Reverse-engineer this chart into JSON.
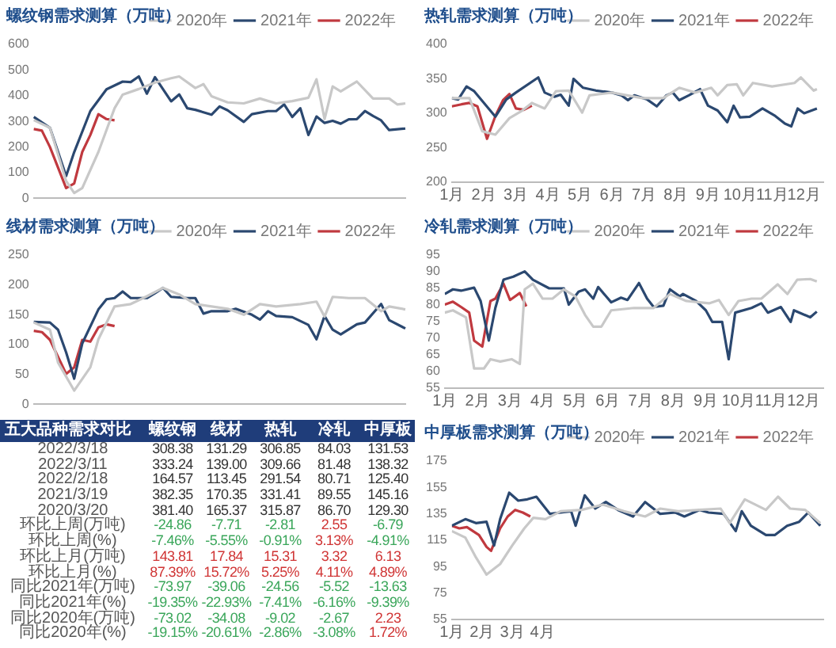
{
  "chart_data": [
    {
      "type": "line",
      "title": "螺纹钢需求测算（万吨）",
      "legend": "top right",
      "grid": false,
      "tick_labels": "y",
      "categories": [
        null,
        null,
        null,
        null,
        null,
        null,
        null,
        null,
        null,
        null,
        null,
        null,
        null,
        null,
        null,
        null,
        null,
        null,
        null,
        null,
        null,
        null,
        null,
        null,
        null,
        null,
        null,
        null,
        null,
        null,
        null,
        null,
        null,
        null,
        null,
        null,
        null,
        null,
        null,
        null,
        null,
        null,
        null,
        null,
        null,
        null,
        null
      ],
      "ylim": [
        0,
        600
      ],
      "yticks": [
        0,
        100,
        200,
        300,
        400,
        500,
        600
      ],
      "series": [
        {
          "name": "2020年",
          "color": "#c8c8c8",
          "values": [
            305,
            null,
            275,
            null,
            68,
            21,
            40,
            null,
            181,
            null,
            351,
            404,
            null,
            426,
            null,
            451,
            null,
            468,
            475,
            null,
            430,
            445,
            398,
            null,
            374,
            null,
            370,
            null,
            389,
            null,
            370,
            null,
            379,
            null,
            392,
            464,
            309,
            436,
            417,
            null,
            455,
            null,
            389,
            null,
            389,
            366,
            370
          ]
        },
        {
          "name": "2021年",
          "color": "#2b4870",
          "values": [
            317,
            null,
            275,
            null,
            87,
            180,
            null,
            340,
            null,
            425,
            null,
            455,
            453,
            475,
            408,
            472,
            null,
            378,
            405,
            351,
            345,
            null,
            326,
            358,
            343,
            null,
            298,
            328,
            null,
            340,
            340,
            366,
            317,
            351,
            247,
            319,
            294,
            302,
            291,
            308,
            309,
            340,
            321,
            304,
            266,
            null,
            272
          ]
        },
        {
          "name": "2022年",
          "color": "#c0393f",
          "values": [
            270,
            264,
            200,
            null,
            40,
            58,
            181,
            247,
            328,
            309,
            304,
            null,
            null,
            null,
            null,
            null,
            null,
            null,
            null,
            null,
            null,
            null,
            null,
            null,
            null,
            null,
            null,
            null,
            null,
            null,
            null,
            null,
            null,
            null,
            null,
            null,
            null,
            null,
            null,
            null,
            null,
            null,
            null,
            null,
            null,
            null,
            null
          ]
        }
      ]
    },
    {
      "type": "line",
      "title": "热轧需求测算（万吨）",
      "legend": "top right",
      "grid": false,
      "xlim": [
        1,
        12.6
      ],
      "xticks": [
        {
          "value": 1,
          "label": "1月"
        },
        {
          "value": 2,
          "label": "2月"
        },
        {
          "value": 3,
          "label": "3月"
        },
        {
          "value": 4,
          "label": "4月"
        },
        {
          "value": 5,
          "label": "5月"
        },
        {
          "value": 6,
          "label": "6月"
        },
        {
          "value": 7,
          "label": "7月"
        },
        {
          "value": 8,
          "label": "8月"
        },
        {
          "value": 9,
          "label": "9月"
        },
        {
          "value": 10,
          "label": "10月"
        },
        {
          "value": 11,
          "label": "11月"
        },
        {
          "value": 12,
          "label": "12月"
        }
      ],
      "ylim": [
        200,
        400
      ],
      "yticks": [
        200,
        250,
        300,
        350,
        400
      ],
      "series": [
        {
          "name": "2020年",
          "color": "#c8c8c8",
          "x": [
            1,
            1.55,
            1.95,
            2.36,
            2.8,
            3.2,
            3.5,
            3.9,
            4.25,
            4.65,
            5.07,
            5.3,
            6.0,
            6.95,
            7.6,
            8.1,
            8.6,
            9.1,
            9.3,
            9.6,
            9.9,
            10.1,
            10.4,
            11.0,
            11.7,
            11.9,
            12.3,
            12.4
          ],
          "values": [
            322,
            322,
            274,
            269,
            293,
            304,
            315,
            307,
            332,
            333,
            301,
            326,
            330,
            322,
            322,
            337,
            330,
            337,
            326,
            341,
            342,
            326,
            344,
            339,
            344,
            352,
            333,
            335
          ]
        },
        {
          "name": "2021年",
          "color": "#2b4870",
          "x": [
            1,
            1.2,
            1.46,
            1.7,
            2.36,
            2.7,
            3.0,
            3.7,
            3.9,
            4.2,
            4.4,
            4.65,
            4.8,
            5.1,
            5.5,
            6.0,
            6.3,
            6.5,
            6.7,
            7.1,
            7.4,
            7.7,
            7.9,
            8.1,
            8.4,
            8.75,
            9.0,
            9.3,
            9.6,
            9.8,
            10.0,
            10.3,
            10.7,
            11.1,
            11.4,
            11.6,
            11.8,
            12.0,
            12.4
          ],
          "values": [
            322,
            320,
            339,
            332,
            295,
            320,
            330,
            352,
            330,
            324,
            327,
            311,
            350,
            337,
            333,
            330,
            326,
            319,
            326,
            320,
            310,
            326,
            330,
            319,
            326,
            335,
            311,
            304,
            287,
            311,
            294,
            295,
            307,
            296,
            285,
            281,
            307,
            300,
            307
          ]
        },
        {
          "name": "2022年",
          "color": "#c0393f",
          "x": [
            1,
            1.3,
            1.55,
            1.8,
            2.1,
            2.36,
            2.6,
            2.8,
            3.0,
            3.25,
            3.5
          ],
          "values": [
            310,
            313,
            315,
            310,
            263,
            296,
            319,
            328,
            307,
            305,
            311
          ]
        }
      ]
    },
    {
      "type": "line",
      "title": "线材需求测算（万吨）",
      "legend": "top right",
      "grid": false,
      "tick_labels": "y",
      "categories": [
        null,
        null,
        null,
        null,
        null,
        null,
        null,
        null,
        null,
        null,
        null,
        null,
        null,
        null,
        null,
        null,
        null,
        null,
        null,
        null,
        null,
        null,
        null,
        null,
        null,
        null,
        null,
        null,
        null,
        null,
        null,
        null,
        null,
        null,
        null,
        null,
        null,
        null,
        null,
        null,
        null,
        null,
        null,
        null,
        null,
        null,
        null
      ],
      "ylim": [
        0,
        250
      ],
      "yticks": [
        0,
        50,
        100,
        150,
        200,
        250
      ],
      "series": [
        {
          "name": "2020年",
          "color": "#c8c8c8",
          "values": [
            137,
            null,
            125,
            70,
            null,
            23,
            null,
            62,
            109,
            null,
            164,
            null,
            168,
            null,
            181,
            null,
            195,
            null,
            184,
            null,
            168,
            null,
            null,
            null,
            160,
            null,
            150,
            null,
            168,
            null,
            164,
            null,
            null,
            168,
            null,
            172,
            147,
            180,
            null,
            178,
            null,
            178,
            null,
            156,
            164,
            null,
            159
          ]
        },
        {
          "name": "2021年",
          "color": "#2b4870",
          "values": [
            138,
            null,
            137,
            125,
            87,
            43,
            102,
            null,
            159,
            176,
            178,
            189,
            178,
            null,
            178,
            186,
            195,
            180,
            null,
            178,
            178,
            152,
            156,
            null,
            156,
            160,
            null,
            150,
            142,
            156,
            148,
            null,
            146,
            null,
            133,
            109,
            148,
            125,
            117,
            null,
            134,
            137,
            null,
            168,
            141,
            null,
            127
          ]
        },
        {
          "name": "2022年",
          "color": "#c0393f",
          "values": [
            123,
            121,
            108,
            null,
            51,
            62,
            108,
            105,
            129,
            134,
            131,
            null,
            null,
            null,
            null,
            null,
            null,
            null,
            null,
            null,
            null,
            null,
            null,
            null,
            null,
            null,
            null,
            null,
            null,
            null,
            null,
            null,
            null,
            null,
            null,
            null,
            null,
            null,
            null,
            null,
            null,
            null,
            null,
            null,
            null,
            null,
            null
          ]
        }
      ]
    },
    {
      "type": "line",
      "title": "冷轧需求测算（万吨）",
      "legend": "top right",
      "grid": false,
      "xlim": [
        1,
        12.6
      ],
      "xticks": [
        {
          "value": 1,
          "label": "1月"
        },
        {
          "value": 2,
          "label": "2月"
        },
        {
          "value": 3,
          "label": "3月"
        },
        {
          "value": 4,
          "label": "4月"
        },
        {
          "value": 5,
          "label": "5月"
        },
        {
          "value": 6,
          "label": "6月"
        },
        {
          "value": 7,
          "label": "7月"
        },
        {
          "value": 8,
          "label": "8月"
        },
        {
          "value": 9,
          "label": "9月"
        },
        {
          "value": 10,
          "label": "10月"
        },
        {
          "value": 11,
          "label": "11月"
        },
        {
          "value": 12,
          "label": "12月"
        }
      ],
      "ylim": [
        55,
        95
      ],
      "yticks": [
        55,
        60,
        65,
        70,
        75,
        80,
        85,
        90,
        95
      ],
      "series": [
        {
          "name": "2020年",
          "color": "#c8c8c8",
          "x": [
            1,
            1.25,
            1.65,
            1.9,
            2.2,
            2.4,
            2.7,
            3.05,
            3.3,
            3.45,
            3.7,
            4.0,
            4.3,
            4.65,
            5.0,
            5.3,
            5.55,
            5.8,
            6.1,
            6.8,
            7.4,
            7.9,
            8.4,
            9.1,
            9.4,
            9.7,
            10.0,
            10.4,
            10.7,
            11.2,
            11.5,
            11.8,
            12.2,
            12.4
          ],
          "values": [
            77.7,
            78.4,
            76.3,
            60.9,
            60.9,
            63.7,
            63.0,
            63.7,
            62.3,
            84.7,
            86.4,
            81.9,
            81.9,
            84.7,
            82.6,
            77.0,
            73.5,
            73.5,
            78.4,
            79.1,
            79.1,
            83.3,
            81.2,
            80.5,
            81.5,
            77.0,
            81.2,
            81.9,
            81.9,
            86.2,
            83.3,
            87.6,
            87.8,
            87.1
          ]
        },
        {
          "name": "2021年",
          "color": "#2b4870",
          "x": [
            1,
            1.25,
            1.5,
            1.9,
            2.1,
            2.35,
            2.55,
            2.8,
            3.1,
            3.45,
            3.7,
            4.2,
            4.65,
            4.8,
            5.1,
            5.3,
            5.55,
            5.7,
            6.1,
            6.4,
            6.6,
            6.95,
            7.2,
            7.4,
            7.7,
            7.9,
            8.2,
            8.3,
            8.7,
            9.0,
            9.2,
            9.5,
            9.7,
            9.9,
            10.4,
            10.7,
            10.9,
            11.3,
            11.6,
            11.7,
            12.2,
            12.4
          ],
          "values": [
            83.3,
            84.7,
            84.3,
            85.2,
            81.2,
            69.3,
            79.1,
            87.6,
            88.5,
            90.1,
            87.6,
            85.0,
            85.0,
            80.1,
            84.0,
            84.7,
            81.9,
            85.4,
            80.8,
            82.2,
            81.5,
            86.6,
            81.9,
            79.4,
            79.8,
            84.7,
            82.6,
            83.3,
            81.2,
            78.4,
            74.9,
            74.9,
            63.7,
            77.7,
            79.1,
            80.5,
            77.7,
            79.4,
            74.9,
            78.4,
            76.3,
            78.0
          ]
        },
        {
          "name": "2022年",
          "color": "#c0393f",
          "x": [
            1,
            1.25,
            1.5,
            1.75,
            1.9,
            2.15,
            2.4,
            2.55,
            2.8,
            3.0,
            3.3,
            3.5
          ],
          "values": [
            80.1,
            81.0,
            79.4,
            77.7,
            69.3,
            67.5,
            81.2,
            81.9,
            86.4,
            81.5,
            83.6,
            79.6
          ]
        }
      ]
    },
    {
      "type": "other",
      "title": "五大品种需求对比",
      "categories": [
        "螺纹钢",
        "线材",
        "热轧",
        "冷轧",
        "中厚板"
      ],
      "y_categories": [
        "2022/3/18",
        "2022/3/11",
        "2022/2/18",
        "2021/3/19",
        "2020/3/20",
        "环比上周(万吨)",
        "环比上周(%)",
        "环比上月(万吨)",
        "环比上月(%)",
        "同比2021年(万吨)",
        "同比2021年(%)",
        "同比2020年(万吨)",
        "同比2020年(%)"
      ],
      "cell_labels": [
        [
          "308.38",
          "131.29",
          "306.85",
          "84.03",
          "131.53"
        ],
        [
          "333.24",
          "139.00",
          "309.66",
          "81.48",
          "138.32"
        ],
        [
          "164.57",
          "113.45",
          "291.54",
          "80.71",
          "125.40"
        ],
        [
          "382.35",
          "170.35",
          "331.41",
          "89.55",
          "145.16"
        ],
        [
          "381.40",
          "165.37",
          "315.87",
          "86.70",
          "129.30"
        ],
        [
          "-24.86",
          "-7.71",
          "-2.81",
          "2.55",
          "-6.79"
        ],
        [
          "-7.46%",
          "-5.55%",
          "-0.91%",
          "3.13%",
          "-4.91%"
        ],
        [
          "143.81",
          "17.84",
          "15.31",
          "3.32",
          "6.13"
        ],
        [
          "87.39%",
          "15.72%",
          "5.25%",
          "4.11%",
          "4.89%"
        ],
        [
          "-73.97",
          "-39.06",
          "-24.56",
          "-5.52",
          "-13.63"
        ],
        [
          "-19.35%",
          "-22.93%",
          "-7.41%",
          "-6.16%",
          "-9.39%"
        ],
        [
          "-73.02",
          "-34.08",
          "-9.02",
          "-2.67",
          "2.23"
        ],
        [
          "-19.15%",
          "-20.61%",
          "-2.86%",
          "-3.08%",
          "1.72%"
        ]
      ],
      "colors": [
        [
          "#333333",
          "#333333",
          "#333333",
          "#333333",
          "#333333"
        ],
        [
          "#333333",
          "#333333",
          "#333333",
          "#333333",
          "#333333"
        ],
        [
          "#333333",
          "#333333",
          "#333333",
          "#333333",
          "#333333"
        ],
        [
          "#333333",
          "#333333",
          "#333333",
          "#333333",
          "#333333"
        ],
        [
          "#333333",
          "#333333",
          "#333333",
          "#333333",
          "#333333"
        ],
        [
          "#3aa65a",
          "#3aa65a",
          "#3aa65a",
          "#d03535",
          "#3aa65a"
        ],
        [
          "#3aa65a",
          "#3aa65a",
          "#3aa65a",
          "#d03535",
          "#3aa65a"
        ],
        [
          "#d03535",
          "#d03535",
          "#d03535",
          "#d03535",
          "#d03535"
        ],
        [
          "#d03535",
          "#d03535",
          "#d03535",
          "#d03535",
          "#d03535"
        ],
        [
          "#3aa65a",
          "#3aa65a",
          "#3aa65a",
          "#3aa65a",
          "#3aa65a"
        ],
        [
          "#3aa65a",
          "#3aa65a",
          "#3aa65a",
          "#3aa65a",
          "#3aa65a"
        ],
        [
          "#3aa65a",
          "#3aa65a",
          "#3aa65a",
          "#3aa65a",
          "#d03535"
        ],
        [
          "#3aa65a",
          "#3aa65a",
          "#3aa65a",
          "#3aa65a",
          "#d03535"
        ]
      ]
    },
    {
      "type": "line",
      "title": "中厚板需求测算（万吨）",
      "legend": "top right",
      "grid": false,
      "xlim": [
        1,
        13.3
      ],
      "xticks": [
        {
          "value": 1,
          "label": "1月"
        },
        {
          "value": 2,
          "label": "2月"
        },
        {
          "value": 3,
          "label": "3月"
        },
        {
          "value": 4,
          "label": "4月"
        }
      ],
      "ylim": [
        55,
        175
      ],
      "yticks": [
        55,
        75,
        95,
        115,
        135,
        155,
        175
      ],
      "series": [
        {
          "name": "2020年",
          "color": "#c8c8c8",
          "x": [
            1,
            1.45,
            1.8,
            2.15,
            2.6,
            3.0,
            3.4,
            3.7,
            4.1,
            4.6,
            5.3,
            6.0,
            6.7,
            7.4,
            7.9,
            8.5,
            9.2,
            9.9,
            10.2,
            10.7,
            11.4,
            11.8,
            12.2,
            12.7,
            13.2
          ],
          "values": [
            122,
            117,
            102,
            89,
            97,
            111,
            124,
            132,
            131,
            137,
            138,
            142,
            137,
            133,
            139,
            137,
            138,
            139,
            128,
            146,
            138,
            148,
            139,
            138,
            128
          ]
        },
        {
          "name": "2021年",
          "color": "#2b4870",
          "x": [
            1,
            1.45,
            1.8,
            2.15,
            2.4,
            2.6,
            2.9,
            3.2,
            3.5,
            3.8,
            4.25,
            4.6,
            4.95,
            5.1,
            5.4,
            5.75,
            6.1,
            6.5,
            7.0,
            7.4,
            7.9,
            8.4,
            8.7,
            9.2,
            9.5,
            10.0,
            10.4,
            10.6,
            10.9,
            11.4,
            11.7,
            12.1,
            12.5,
            12.8,
            13.2
          ],
          "values": [
            126,
            131,
            128,
            129,
            111,
            131,
            151,
            145,
            146,
            148,
            135,
            136,
            137,
            126,
            149,
            139,
            144,
            138,
            133,
            144,
            135,
            136,
            133,
            138,
            136,
            135,
            122,
            137,
            126,
            119,
            119,
            126,
            129,
            136,
            126
          ]
        },
        {
          "name": "2022年",
          "color": "#c0393f",
          "x": [
            1,
            1.25,
            1.5,
            1.9,
            2.15,
            2.3,
            2.6,
            2.85,
            3.1,
            3.35,
            3.6
          ],
          "values": [
            126,
            124,
            125,
            119,
            110,
            107,
            124,
            133,
            138,
            136,
            133
          ]
        }
      ]
    }
  ]
}
